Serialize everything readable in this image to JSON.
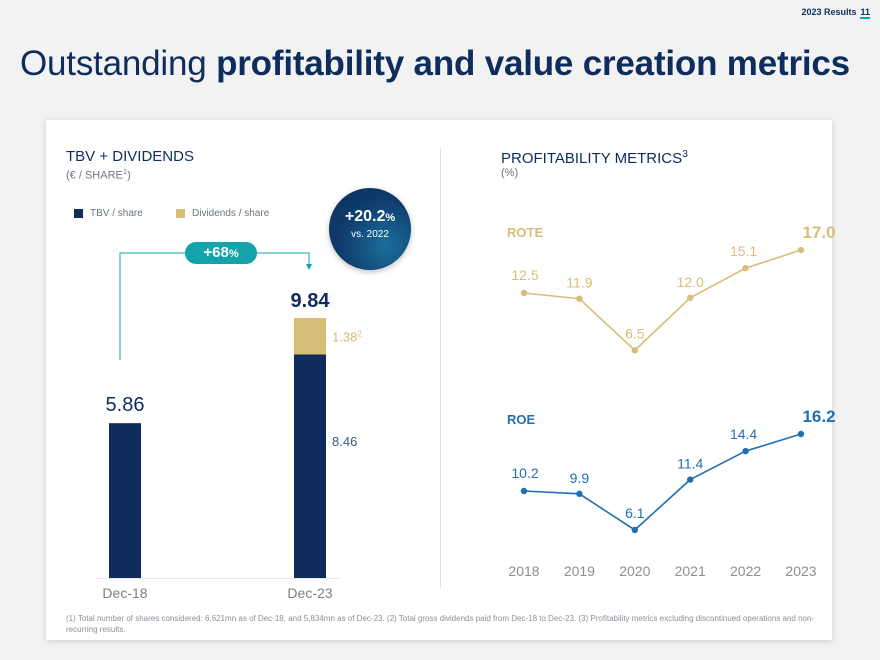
{
  "header": {
    "report": "2023 Results",
    "page": "11"
  },
  "headline": {
    "light": "Outstanding",
    "bold": "profitability and value creation metrics"
  },
  "left": {
    "title": "TBV + DIVIDENDS",
    "subtitle": "(€ / SHARE",
    "subtitle_sup": "1",
    "subtitle_end": ")",
    "legend": {
      "tbv": "TBV / share",
      "div": "Dividends / share"
    },
    "growth_pill": {
      "value": "+68",
      "unit": "%"
    },
    "badge": {
      "value": "+20.2",
      "unit": "%",
      "text": "vs. 2022"
    }
  },
  "right": {
    "title": "PROFITABILITY METRICS",
    "title_sup": "3",
    "subtitle": "(%)"
  },
  "footnote": "(1) Total number of shares considered: 6,621mn as of Dec-18, and 5,834mn as of Dec-23. (2) Total gross dividends paid from Dec-18 to Dec-23. (3) Profitability metrics excluding discontinued operations and non-recurring results.",
  "colors": {
    "navy": "#0e2d5c",
    "gold": "#d7bd78",
    "blue": "#1f6fb2",
    "teal": "#14a3a8"
  },
  "chart_data": [
    {
      "type": "bar",
      "stacked": true,
      "categories": [
        "Dec-18",
        "Dec-23"
      ],
      "series": [
        {
          "name": "TBV / share",
          "values": [
            5.86,
            8.46
          ]
        },
        {
          "name": "Dividends / share",
          "values": [
            0,
            1.38
          ]
        }
      ],
      "totals": [
        "5.86",
        "9.84"
      ],
      "value_labels": {
        "tbv_dec23": "8.46",
        "div_dec23": "1.38",
        "div_dec23_sup": "2"
      },
      "ylim": [
        0,
        10
      ]
    },
    {
      "type": "line",
      "x": [
        "2018",
        "2019",
        "2020",
        "2021",
        "2022",
        "2023"
      ],
      "series": [
        {
          "name": "ROTE",
          "values": [
            12.5,
            11.9,
            6.5,
            12.0,
            15.1,
            17.0
          ],
          "labels": [
            "12.5",
            "11.9",
            "6.5",
            "12.0",
            "15.1",
            "17.0"
          ]
        },
        {
          "name": "ROE",
          "values": [
            10.2,
            9.9,
            6.1,
            11.4,
            14.4,
            16.2
          ],
          "labels": [
            "10.2",
            "9.9",
            "6.1",
            "11.4",
            "14.4",
            "16.2"
          ]
        }
      ]
    }
  ]
}
